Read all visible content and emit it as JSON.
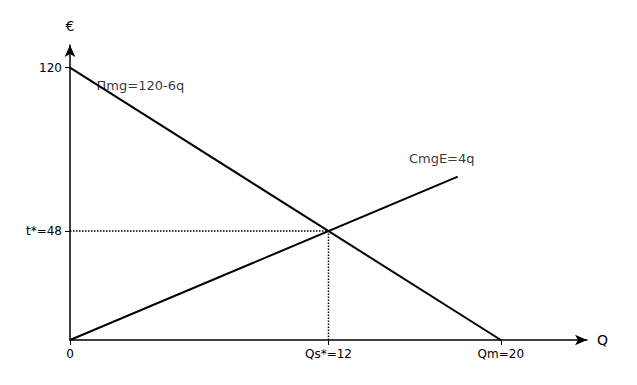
{
  "chart_data": {
    "type": "line",
    "x_label": "Q",
    "y_label": "€",
    "xlim": [
      0,
      24
    ],
    "ylim": [
      0,
      130
    ],
    "xticks": [
      0,
      {
        "value": 12,
        "label": "Qs*=12"
      },
      {
        "value": 20,
        "label": "Qm=20"
      }
    ],
    "yticks": [
      {
        "value": 48,
        "label": "t*=48"
      },
      120
    ],
    "grid": false,
    "series": [
      {
        "x": [
          0,
          20
        ],
        "values": [
          120,
          0
        ],
        "color": "#000000"
      },
      {
        "x": [
          0,
          18
        ],
        "values": [
          0,
          72
        ],
        "color": "#000000"
      },
      {
        "x": [
          0,
          12
        ],
        "values": [
          48,
          48
        ],
        "color": "#000000",
        "line_style": "dotted"
      },
      {
        "x": [
          12,
          12
        ],
        "values": [
          0,
          48
        ],
        "color": "#000000",
        "line_style": "dotted"
      }
    ],
    "annotations": [
      {
        "text": "Πmg=120-6q",
        "x": 1.0,
        "y": 112
      },
      {
        "text": "CmgE=4q",
        "x": 15.5,
        "y": 80
      }
    ]
  }
}
